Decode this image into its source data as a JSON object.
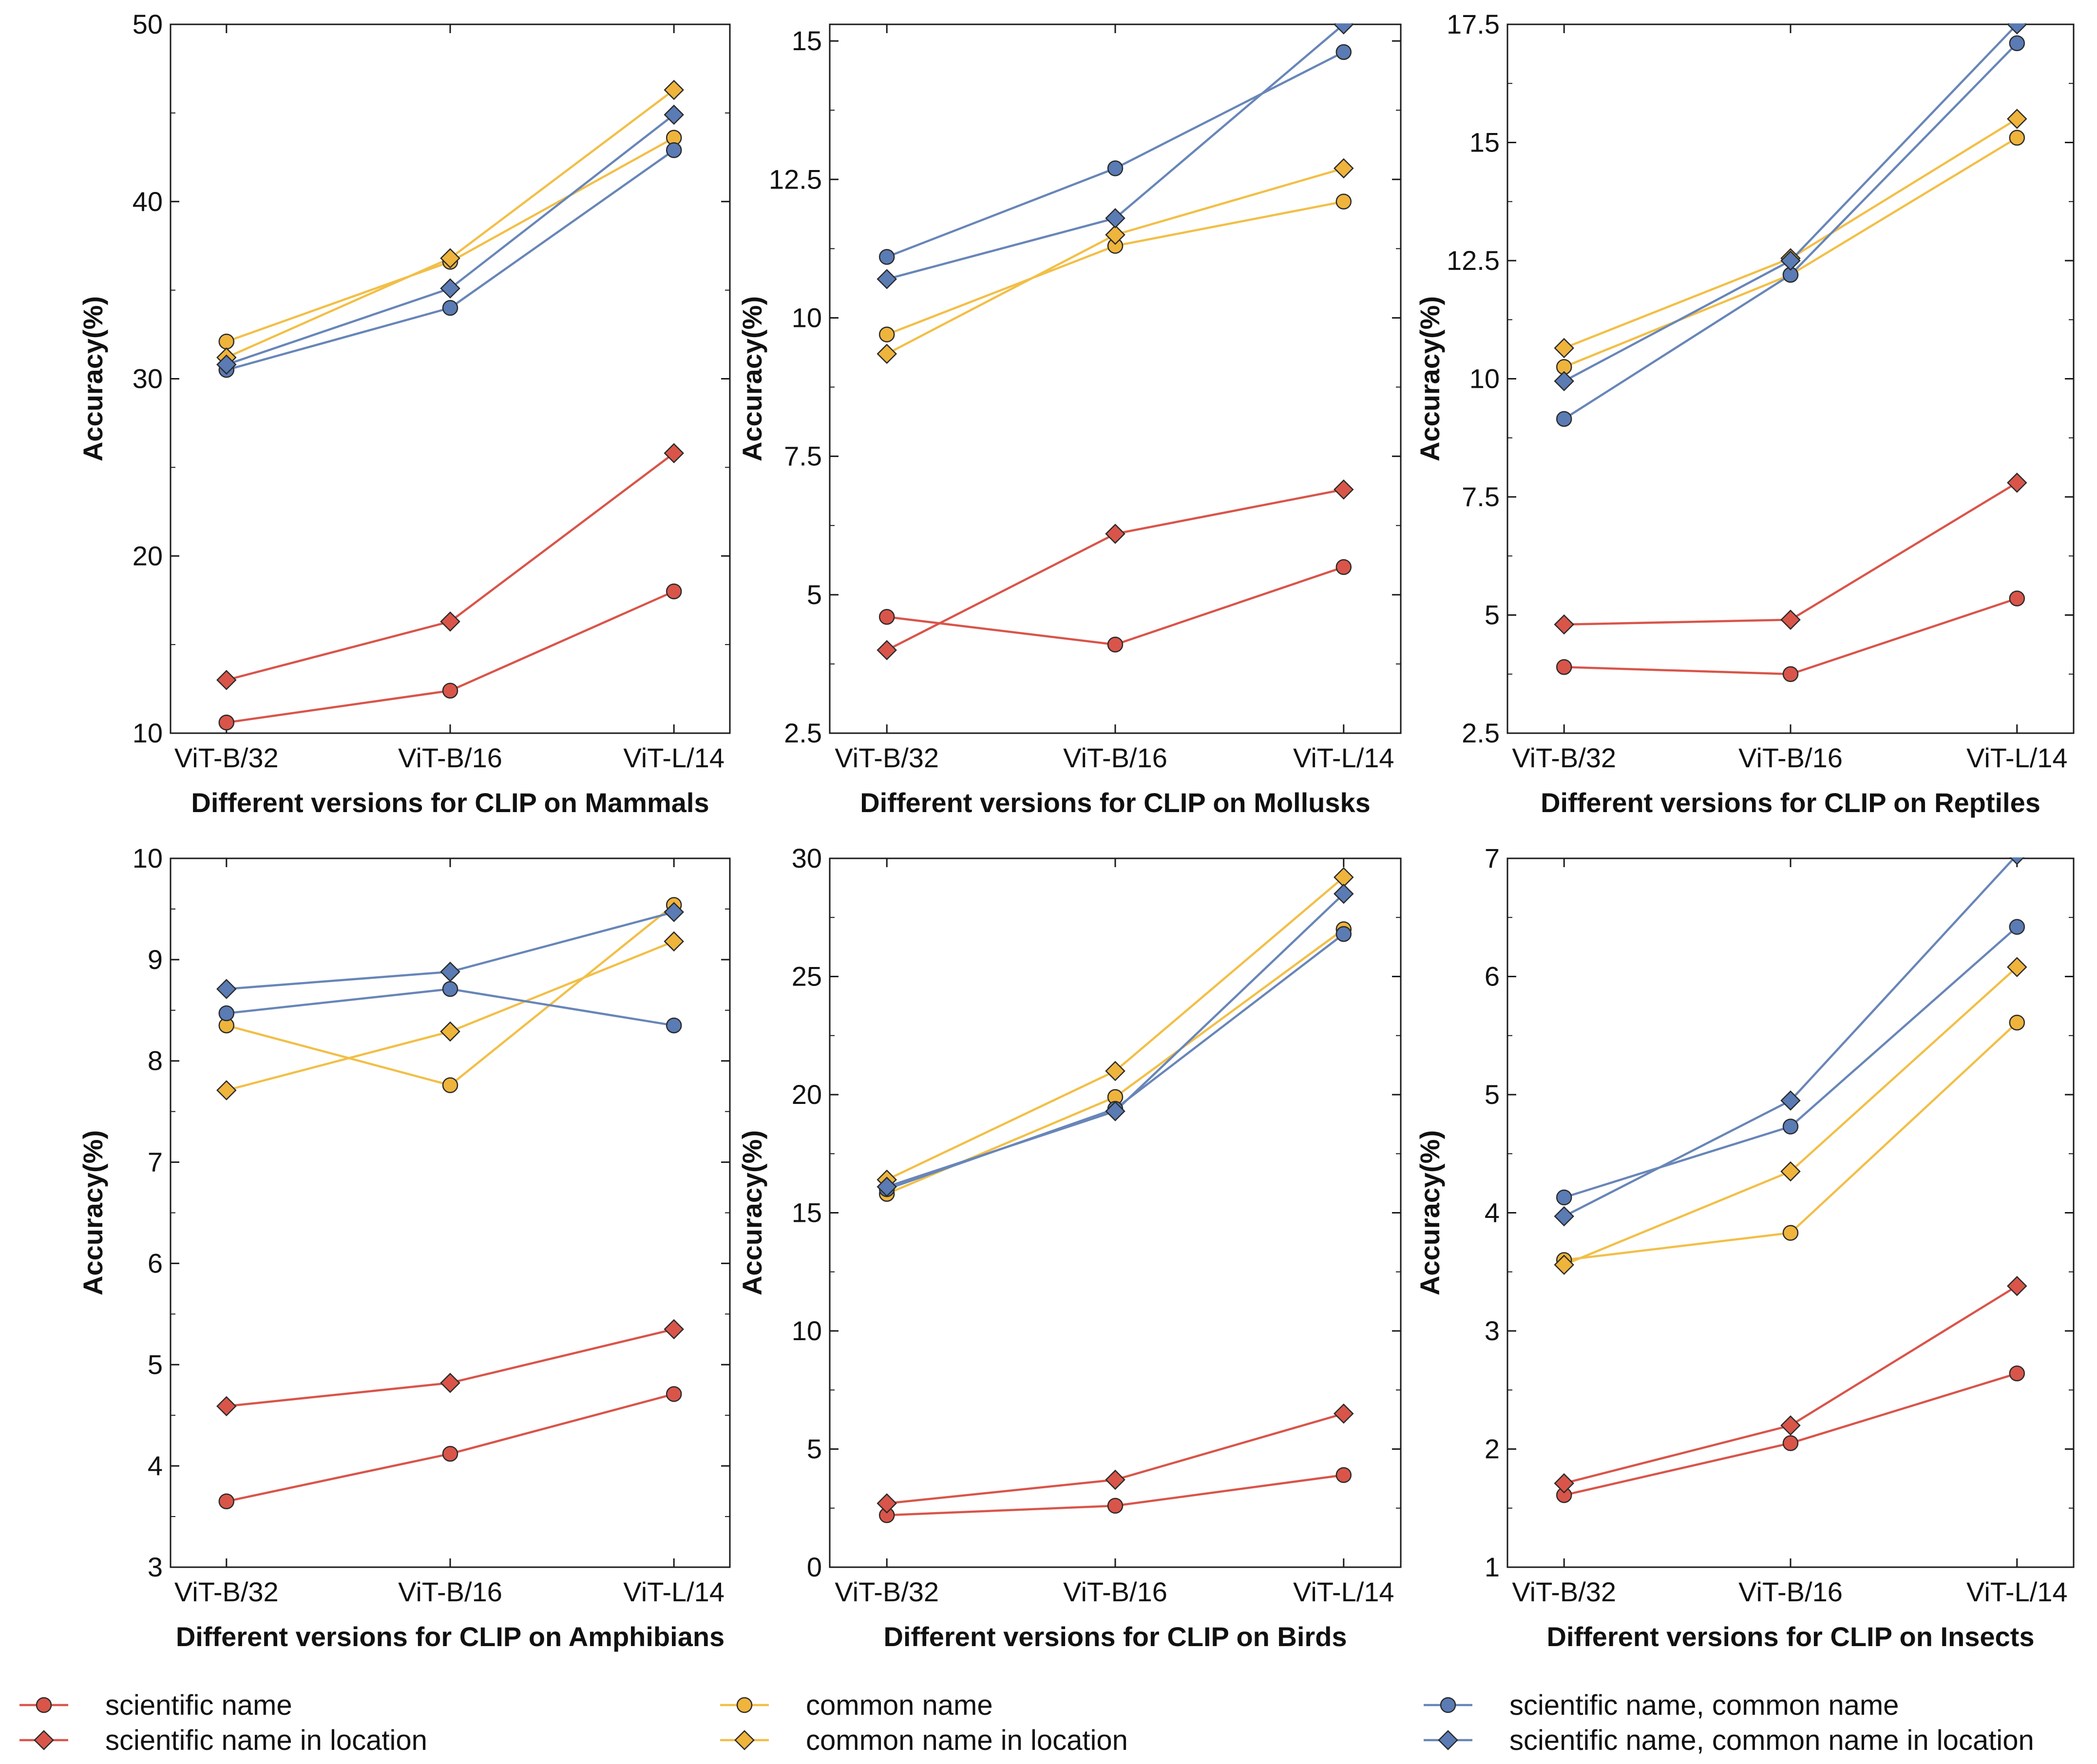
{
  "chart_data": [
    {
      "type": "line",
      "title": "Different versions for CLIP on Mammals",
      "xlabel": "Different versions for CLIP on Mammals",
      "ylabel": "Accuracy(%)",
      "categories": [
        "ViT-B/32",
        "ViT-B/16",
        "ViT-L/14"
      ],
      "ylim": [
        10,
        50
      ],
      "yticks": [
        10,
        20,
        30,
        40,
        50
      ],
      "ytick_labels": [
        "10",
        "20",
        "30",
        "40",
        "50"
      ],
      "series": [
        {
          "name": "scientific name",
          "values": [
            10.6,
            12.4,
            18.0
          ]
        },
        {
          "name": "scientific name in location",
          "values": [
            13.0,
            16.3,
            25.8
          ]
        },
        {
          "name": "common name",
          "values": [
            32.1,
            36.6,
            43.6
          ]
        },
        {
          "name": "common name in location",
          "values": [
            31.2,
            36.8,
            46.3
          ]
        },
        {
          "name": "scientific name, common name",
          "values": [
            30.5,
            34.0,
            42.9
          ]
        },
        {
          "name": "scientific name, common name in location",
          "values": [
            30.8,
            35.1,
            44.9
          ]
        }
      ]
    },
    {
      "type": "line",
      "title": "Different versions for CLIP on Mollusks",
      "xlabel": "Different versions for CLIP on Mollusks",
      "ylabel": "Accuracy(%)",
      "categories": [
        "ViT-B/32",
        "ViT-B/16",
        "ViT-L/14"
      ],
      "ylim": [
        2.5,
        15.3
      ],
      "yticks": [
        2.5,
        5,
        7.5,
        10,
        12.5,
        15
      ],
      "ytick_labels": [
        "2.5",
        "5",
        "7.5",
        "10",
        "12.5",
        "15"
      ],
      "series": [
        {
          "name": "scientific name",
          "values": [
            4.6,
            4.1,
            5.5
          ]
        },
        {
          "name": "scientific name in location",
          "values": [
            4.0,
            6.1,
            6.9
          ]
        },
        {
          "name": "common name",
          "values": [
            9.7,
            11.3,
            12.1
          ]
        },
        {
          "name": "common name in location",
          "values": [
            9.35,
            11.5,
            12.7
          ]
        },
        {
          "name": "scientific name, common name",
          "values": [
            11.1,
            12.7,
            14.8
          ]
        },
        {
          "name": "scientific name, common name in location",
          "values": [
            10.7,
            11.8,
            15.3
          ]
        }
      ]
    },
    {
      "type": "line",
      "title": "Different versions for CLIP on Reptiles",
      "xlabel": "Different versions for CLIP on Reptiles",
      "ylabel": "Accuracy(%)",
      "categories": [
        "ViT-B/32",
        "ViT-B/16",
        "ViT-L/14"
      ],
      "ylim": [
        2.5,
        17.5
      ],
      "yticks": [
        2.5,
        5,
        7.5,
        10,
        12.5,
        15,
        17.5
      ],
      "ytick_labels": [
        "2.5",
        "5",
        "7.5",
        "10",
        "12.5",
        "15",
        "17.5"
      ],
      "series": [
        {
          "name": "scientific name",
          "values": [
            3.9,
            3.75,
            5.35
          ]
        },
        {
          "name": "scientific name in location",
          "values": [
            4.8,
            4.9,
            7.8
          ]
        },
        {
          "name": "common name",
          "values": [
            10.25,
            12.2,
            15.1
          ]
        },
        {
          "name": "common name in location",
          "values": [
            10.65,
            12.55,
            15.5
          ]
        },
        {
          "name": "scientific name, common name",
          "values": [
            9.15,
            12.2,
            17.1
          ]
        },
        {
          "name": "scientific name, common name in location",
          "values": [
            9.95,
            12.5,
            17.5
          ]
        }
      ]
    },
    {
      "type": "line",
      "title": "Different versions for CLIP on Amphibians",
      "xlabel": "Different versions for CLIP on Amphibians",
      "ylabel": "Accuracy(%)",
      "categories": [
        "ViT-B/32",
        "ViT-B/16",
        "ViT-L/14"
      ],
      "ylim": [
        3,
        10
      ],
      "yticks": [
        3,
        4,
        5,
        6,
        7,
        8,
        9,
        10
      ],
      "ytick_labels": [
        "3",
        "4",
        "5",
        "6",
        "7",
        "8",
        "9",
        "10"
      ],
      "series": [
        {
          "name": "scientific name",
          "values": [
            3.65,
            4.12,
            4.71
          ]
        },
        {
          "name": "scientific name in location",
          "values": [
            4.59,
            4.82,
            5.35
          ]
        },
        {
          "name": "common name",
          "values": [
            8.35,
            7.76,
            9.54
          ]
        },
        {
          "name": "common name in location",
          "values": [
            7.71,
            8.29,
            9.18
          ]
        },
        {
          "name": "scientific name, common name",
          "values": [
            8.47,
            8.71,
            8.35
          ]
        },
        {
          "name": "scientific name, common name in location",
          "values": [
            8.71,
            8.88,
            9.47
          ]
        }
      ]
    },
    {
      "type": "line",
      "title": "Different versions for CLIP on Birds",
      "xlabel": "Different versions for CLIP on Birds",
      "ylabel": "Accuracy(%)",
      "categories": [
        "ViT-B/32",
        "ViT-B/16",
        "ViT-L/14"
      ],
      "ylim": [
        0,
        30
      ],
      "yticks": [
        0,
        5,
        10,
        15,
        20,
        25,
        30
      ],
      "ytick_labels": [
        "0",
        "5",
        "10",
        "15",
        "20",
        "25",
        "30"
      ],
      "series": [
        {
          "name": "scientific name",
          "values": [
            2.2,
            2.6,
            3.9
          ]
        },
        {
          "name": "scientific name in location",
          "values": [
            2.7,
            3.7,
            6.5
          ]
        },
        {
          "name": "common name",
          "values": [
            15.8,
            19.9,
            27.0
          ]
        },
        {
          "name": "common name in location",
          "values": [
            16.4,
            21.0,
            29.2
          ]
        },
        {
          "name": "scientific name, common name",
          "values": [
            16.0,
            19.4,
            26.8
          ]
        },
        {
          "name": "scientific name, common name in location",
          "values": [
            16.1,
            19.3,
            28.5
          ]
        }
      ]
    },
    {
      "type": "line",
      "title": "Different versions for CLIP on Insects",
      "xlabel": "Different versions for CLIP on Insects",
      "ylabel": "Accuracy(%)",
      "categories": [
        "ViT-B/32",
        "ViT-B/16",
        "ViT-L/14"
      ],
      "ylim": [
        1,
        7
      ],
      "yticks": [
        1,
        2,
        3,
        4,
        5,
        6,
        7
      ],
      "ytick_labels": [
        "1",
        "2",
        "3",
        "4",
        "5",
        "6",
        "7"
      ],
      "series": [
        {
          "name": "scientific name",
          "values": [
            1.61,
            2.05,
            2.64
          ]
        },
        {
          "name": "scientific name in location",
          "values": [
            1.71,
            2.2,
            3.38
          ]
        },
        {
          "name": "common name",
          "values": [
            3.6,
            3.83,
            5.61
          ]
        },
        {
          "name": "common name in location",
          "values": [
            3.56,
            4.35,
            6.08
          ]
        },
        {
          "name": "scientific name, common name",
          "values": [
            4.13,
            4.73,
            6.42
          ]
        },
        {
          "name": "scientific name, common name in location",
          "values": [
            3.97,
            4.95,
            7.03
          ]
        }
      ]
    }
  ],
  "series_styles": [
    {
      "name": "scientific name",
      "line_color": "#d9554a",
      "fill": "#d9554a",
      "marker": "circle"
    },
    {
      "name": "scientific name in location",
      "line_color": "#d9554a",
      "fill": "#d9554a",
      "marker": "diamond"
    },
    {
      "name": "common name",
      "line_color": "#f2bf47",
      "fill": "#efb43c",
      "marker": "circle"
    },
    {
      "name": "common name in location",
      "line_color": "#f2bf47",
      "fill": "#efb43c",
      "marker": "diamond"
    },
    {
      "name": "scientific name, common name",
      "line_color": "#6886b8",
      "fill": "#5a7bb4",
      "marker": "circle"
    },
    {
      "name": "scientific name, common name in location",
      "line_color": "#6886b8",
      "fill": "#5a7bb4",
      "marker": "diamond"
    }
  ],
  "legend": {
    "position": "bottom",
    "items": [
      "scientific name",
      "scientific name in location",
      "common name",
      "common name in location",
      "scientific name, common name",
      "scientific name, common name in location"
    ]
  }
}
